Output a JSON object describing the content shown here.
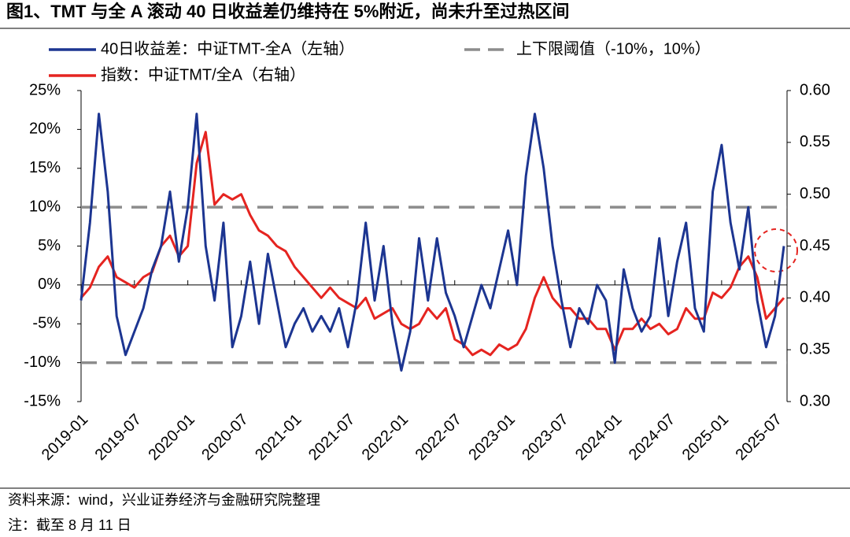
{
  "chart_data": {
    "type": "line",
    "title": "图1、TMT 与全 A 滚动 40 日收益差仍维持在 5%附近，尚未升至过热区间",
    "source": "资料来源：wind，兴业证券经济与金融研究院整理",
    "note": "注：截至 8 月 11 日",
    "categories": [
      "2019-01",
      "2019-02",
      "2019-03",
      "2019-04",
      "2019-05",
      "2019-06",
      "2019-07",
      "2019-08",
      "2019-09",
      "2019-10",
      "2019-11",
      "2019-12",
      "2020-01",
      "2020-02",
      "2020-03",
      "2020-04",
      "2020-05",
      "2020-06",
      "2020-07",
      "2020-08",
      "2020-09",
      "2020-10",
      "2020-11",
      "2020-12",
      "2021-01",
      "2021-02",
      "2021-03",
      "2021-04",
      "2021-05",
      "2021-06",
      "2021-07",
      "2021-08",
      "2021-09",
      "2021-10",
      "2021-11",
      "2021-12",
      "2022-01",
      "2022-02",
      "2022-03",
      "2022-04",
      "2022-05",
      "2022-06",
      "2022-07",
      "2022-08",
      "2022-09",
      "2022-10",
      "2022-11",
      "2022-12",
      "2023-01",
      "2023-02",
      "2023-03",
      "2023-04",
      "2023-05",
      "2023-06",
      "2023-07",
      "2023-08",
      "2023-09",
      "2023-10",
      "2023-11",
      "2023-12",
      "2024-01",
      "2024-02",
      "2024-03",
      "2024-04",
      "2024-05",
      "2024-06",
      "2024-07",
      "2024-08",
      "2024-09",
      "2024-10",
      "2024-11",
      "2024-12",
      "2025-01",
      "2025-02",
      "2025-03",
      "2025-04",
      "2025-05",
      "2025-06",
      "2025-07",
      "2025-08"
    ],
    "xticks": [
      "2019-01",
      "2019-07",
      "2020-01",
      "2020-07",
      "2021-01",
      "2021-07",
      "2022-01",
      "2022-07",
      "2023-01",
      "2023-07",
      "2024-01",
      "2024-07",
      "2025-01",
      "2025-07"
    ],
    "series": [
      {
        "name": "40日收益差：中证TMT-全A（左轴）",
        "color": "#1c3591",
        "axis": "y",
        "values": [
          -2,
          8,
          22,
          12,
          -4,
          -9,
          -6,
          -3,
          2,
          5,
          12,
          3,
          10,
          22,
          5,
          -2,
          8,
          -8,
          -4,
          3,
          -5,
          4,
          -2,
          -8,
          -5,
          -3,
          -6,
          -4,
          -6,
          -3,
          -8,
          -2,
          8,
          -2,
          5,
          -5,
          -11,
          -6,
          6,
          -2,
          6,
          -1,
          -4,
          -8,
          -4,
          0,
          -3,
          2,
          7,
          0,
          14,
          22,
          15,
          5,
          -2,
          -8,
          -3,
          -5,
          0,
          -2,
          -10,
          2,
          -3,
          -6,
          -4,
          6,
          -4,
          3,
          8,
          -3,
          -6,
          12,
          18,
          8,
          2,
          10,
          -2,
          -8,
          -4,
          5
        ]
      },
      {
        "name": "指数：中证TMT/全A（右轴）",
        "color": "#e52420",
        "axis": "y2",
        "values": [
          0.4,
          0.41,
          0.43,
          0.44,
          0.42,
          0.415,
          0.41,
          0.42,
          0.425,
          0.45,
          0.46,
          0.44,
          0.45,
          0.53,
          0.56,
          0.49,
          0.5,
          0.495,
          0.5,
          0.48,
          0.465,
          0.46,
          0.45,
          0.445,
          0.43,
          0.42,
          0.41,
          0.4,
          0.41,
          0.4,
          0.395,
          0.39,
          0.4,
          0.38,
          0.385,
          0.39,
          0.375,
          0.37,
          0.375,
          0.39,
          0.38,
          0.39,
          0.36,
          0.355,
          0.345,
          0.35,
          0.345,
          0.355,
          0.35,
          0.355,
          0.37,
          0.4,
          0.42,
          0.4,
          0.39,
          0.39,
          0.38,
          0.38,
          0.37,
          0.37,
          0.35,
          0.37,
          0.37,
          0.38,
          0.37,
          0.375,
          0.365,
          0.37,
          0.39,
          0.38,
          0.38,
          0.405,
          0.4,
          0.41,
          0.43,
          0.44,
          0.42,
          0.38,
          0.39,
          0.4
        ]
      }
    ],
    "reference_lines": {
      "name": "上下限阈值（-10%，10%）",
      "color": "#8c8c8c",
      "values": [
        -10,
        10
      ]
    },
    "ylim": [
      -15,
      25
    ],
    "yticks": [
      {
        "value": -15,
        "label": "-15%"
      },
      {
        "value": -10,
        "label": "-10%"
      },
      {
        "value": -5,
        "label": "-5%"
      },
      {
        "value": 0,
        "label": "0%"
      },
      {
        "value": 5,
        "label": "5%"
      },
      {
        "value": 10,
        "label": "10%"
      },
      {
        "value": 15,
        "label": "15%"
      },
      {
        "value": 20,
        "label": "20%"
      },
      {
        "value": 25,
        "label": "25%"
      }
    ],
    "y2lim": [
      0.3,
      0.6
    ],
    "y2ticks": [
      {
        "value": 0.3,
        "label": "0.30"
      },
      {
        "value": 0.35,
        "label": "0.35"
      },
      {
        "value": 0.4,
        "label": "0.40"
      },
      {
        "value": 0.45,
        "label": "0.45"
      },
      {
        "value": 0.5,
        "label": "0.50"
      },
      {
        "value": 0.55,
        "label": "0.55"
      },
      {
        "value": 0.6,
        "label": "0.60"
      }
    ]
  }
}
